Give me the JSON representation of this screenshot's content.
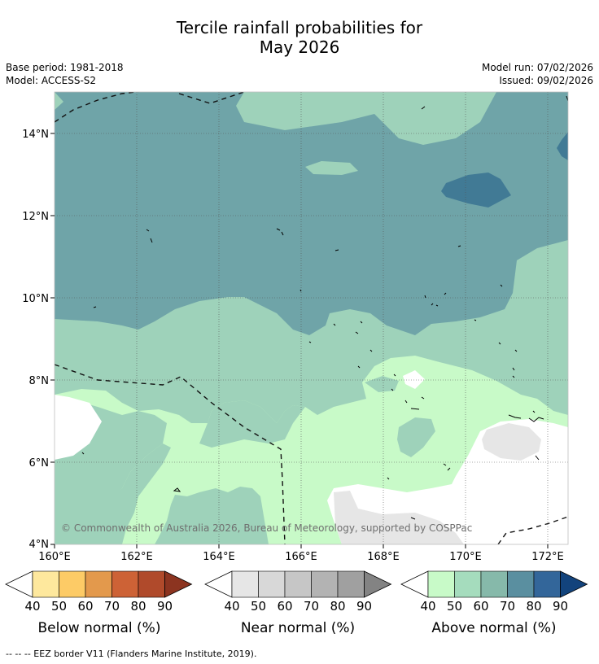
{
  "title_line1": "Tercile rainfall probabilities for",
  "title_line2": "May 2026",
  "base_period": "Base period: 1981-2018",
  "model": "Model: ACCESS-S2",
  "model_run": "Model run: 07/02/2026",
  "issued": "Issued: 09/02/2026",
  "lat_labels": [
    "14°N",
    "12°N",
    "10°N",
    "8°N",
    "6°N",
    "4°N"
  ],
  "lon_labels": [
    "160°E",
    "162°E",
    "164°E",
    "166°E",
    "168°E",
    "170°E",
    "172°E"
  ],
  "copyright": "© Commonwealth of Australia 2026, Bureau of Meteorology, supported by COSPPac",
  "colorbars": [
    {
      "title": "Below normal (%)",
      "ticks": [
        "40",
        "50",
        "60",
        "70",
        "80",
        "90"
      ],
      "colors": [
        "#ffffff",
        "#fee89d",
        "#fdcb66",
        "#e3994c",
        "#cd6236",
        "#b04a2b",
        "#8c3420"
      ]
    },
    {
      "title": "Near normal (%)",
      "ticks": [
        "40",
        "50",
        "60",
        "70",
        "80",
        "90"
      ],
      "colors": [
        "#ffffff",
        "#e6e6e6",
        "#d8d8d8",
        "#c6c6c6",
        "#b3b3b3",
        "#a0a0a0",
        "#838383"
      ]
    },
    {
      "title": "Above normal (%)",
      "ticks": [
        "40",
        "50",
        "60",
        "70",
        "80",
        "90"
      ],
      "colors": [
        "#ffffff",
        "#c8fac8",
        "#a5dcbd",
        "#86b9aa",
        "#5a8fa0",
        "#33669a",
        "#12437c"
      ]
    }
  ],
  "footnote": "--  --  -- EEZ border V11 (Flanders Marine Institute, 2019)."
}
